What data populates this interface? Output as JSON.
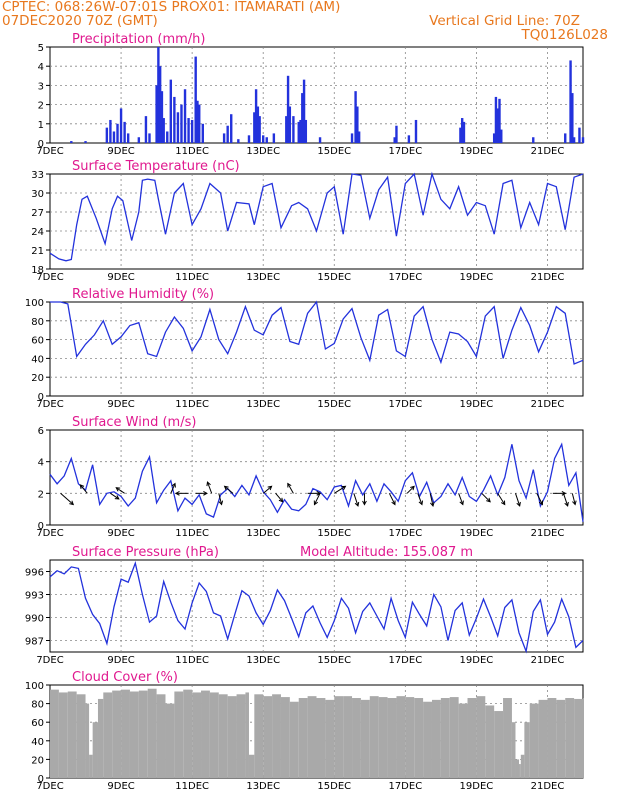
{
  "header": {
    "line1_left": "CPTEC:   068:26W-07:01S   PROX01: ITAMARATI (AM)",
    "line2_left": "07DEC2020 70Z (GMT)",
    "line2_right": "Vertical Grid Line: 70Z",
    "line3_right": "TQ0126L028"
  },
  "colors": {
    "header": "#e8781e",
    "title": "#e0198f",
    "series": "#2332dc",
    "cloud": "#a9a9a9"
  },
  "chart_data": [
    {
      "type": "bar",
      "title": "Precipitation (mm/h)",
      "ylim": [
        0,
        5
      ],
      "yticks": [
        "0",
        "1",
        "2",
        "3",
        "4",
        "5"
      ],
      "xticks": [
        "7DEC",
        "9DEC",
        "11DEC",
        "13DEC",
        "15DEC",
        "17DEC",
        "19DEC",
        "21DEC"
      ],
      "x_days": [
        0,
        15
      ],
      "bars": [
        {
          "x": 0.6,
          "y": 0.1
        },
        {
          "x": 1.0,
          "y": 0.1
        },
        {
          "x": 1.6,
          "y": 0.8
        },
        {
          "x": 1.7,
          "y": 1.2
        },
        {
          "x": 1.8,
          "y": 0.6
        },
        {
          "x": 1.9,
          "y": 1.0
        },
        {
          "x": 2.0,
          "y": 1.8
        },
        {
          "x": 2.1,
          "y": 1.1
        },
        {
          "x": 2.2,
          "y": 0.5
        },
        {
          "x": 2.5,
          "y": 0.3
        },
        {
          "x": 2.7,
          "y": 1.4
        },
        {
          "x": 2.8,
          "y": 0.5
        },
        {
          "x": 3.0,
          "y": 3.0
        },
        {
          "x": 3.05,
          "y": 5.0
        },
        {
          "x": 3.1,
          "y": 4.0
        },
        {
          "x": 3.15,
          "y": 2.7
        },
        {
          "x": 3.2,
          "y": 1.3
        },
        {
          "x": 3.3,
          "y": 0.6
        },
        {
          "x": 3.4,
          "y": 3.3
        },
        {
          "x": 3.5,
          "y": 2.4
        },
        {
          "x": 3.6,
          "y": 1.6
        },
        {
          "x": 3.7,
          "y": 2.0
        },
        {
          "x": 3.8,
          "y": 2.8
        },
        {
          "x": 3.9,
          "y": 1.3
        },
        {
          "x": 4.0,
          "y": 1.2
        },
        {
          "x": 4.1,
          "y": 4.5
        },
        {
          "x": 4.15,
          "y": 2.2
        },
        {
          "x": 4.2,
          "y": 2.0
        },
        {
          "x": 4.3,
          "y": 1.0
        },
        {
          "x": 4.9,
          "y": 0.5
        },
        {
          "x": 5.0,
          "y": 0.9
        },
        {
          "x": 5.1,
          "y": 1.5
        },
        {
          "x": 5.3,
          "y": 0.2
        },
        {
          "x": 5.6,
          "y": 0.4
        },
        {
          "x": 5.75,
          "y": 1.6
        },
        {
          "x": 5.8,
          "y": 2.8
        },
        {
          "x": 5.85,
          "y": 1.9
        },
        {
          "x": 5.9,
          "y": 1.4
        },
        {
          "x": 6.0,
          "y": 0.4
        },
        {
          "x": 6.1,
          "y": 0.3
        },
        {
          "x": 6.3,
          "y": 0.5
        },
        {
          "x": 6.65,
          "y": 1.4
        },
        {
          "x": 6.7,
          "y": 3.5
        },
        {
          "x": 6.75,
          "y": 1.9
        },
        {
          "x": 6.85,
          "y": 1.4
        },
        {
          "x": 7.0,
          "y": 1.1
        },
        {
          "x": 7.05,
          "y": 1.2
        },
        {
          "x": 7.1,
          "y": 2.6
        },
        {
          "x": 7.15,
          "y": 3.3
        },
        {
          "x": 7.2,
          "y": 1.2
        },
        {
          "x": 7.6,
          "y": 0.3
        },
        {
          "x": 8.5,
          "y": 0.5
        },
        {
          "x": 8.6,
          "y": 2.7
        },
        {
          "x": 8.65,
          "y": 1.9
        },
        {
          "x": 8.7,
          "y": 0.6
        },
        {
          "x": 9.7,
          "y": 0.3
        },
        {
          "x": 9.75,
          "y": 0.9
        },
        {
          "x": 10.1,
          "y": 0.4
        },
        {
          "x": 10.3,
          "y": 1.2
        },
        {
          "x": 11.55,
          "y": 0.8
        },
        {
          "x": 11.6,
          "y": 1.3
        },
        {
          "x": 11.65,
          "y": 1.1
        },
        {
          "x": 12.5,
          "y": 0.5
        },
        {
          "x": 12.55,
          "y": 2.4
        },
        {
          "x": 12.6,
          "y": 1.8
        },
        {
          "x": 12.65,
          "y": 2.3
        },
        {
          "x": 12.7,
          "y": 0.7
        },
        {
          "x": 13.6,
          "y": 0.3
        },
        {
          "x": 14.5,
          "y": 0.5
        },
        {
          "x": 14.65,
          "y": 4.3
        },
        {
          "x": 14.7,
          "y": 2.6
        },
        {
          "x": 14.75,
          "y": 0.3
        },
        {
          "x": 14.9,
          "y": 0.8
        },
        {
          "x": 15.0,
          "y": 0.3
        }
      ]
    },
    {
      "type": "line",
      "title": "Surface Temperature (nC)",
      "ylim": [
        18,
        33
      ],
      "yticks": [
        "18",
        "21",
        "24",
        "27",
        "30",
        "33"
      ],
      "xticks": [
        "7DEC",
        "9DEC",
        "11DEC",
        "13DEC",
        "15DEC",
        "17DEC",
        "19DEC",
        "21DEC"
      ],
      "x_days": [
        0,
        15
      ],
      "x": [
        0,
        0.25,
        0.45,
        0.6,
        0.75,
        0.9,
        1.05,
        1.3,
        1.55,
        1.75,
        1.9,
        2.05,
        2.3,
        2.5,
        2.6,
        2.75,
        2.95,
        3.05,
        3.25,
        3.5,
        3.75,
        4.0,
        4.25,
        4.5,
        4.8,
        5.0,
        5.25,
        5.6,
        5.75,
        6.0,
        6.25,
        6.5,
        6.8,
        7.0,
        7.25,
        7.5,
        7.8,
        8.0,
        8.25,
        8.5,
        8.75,
        9.0,
        9.25,
        9.5,
        9.75,
        10.0,
        10.25,
        10.5,
        10.75,
        11.0,
        11.25,
        11.5,
        11.75,
        12.0,
        12.25,
        12.5,
        12.75,
        13.0,
        13.25,
        13.5,
        13.75,
        14.0,
        14.25,
        14.5,
        14.75,
        15.0
      ],
      "y": [
        20.5,
        19.6,
        19.3,
        19.5,
        25.0,
        29.0,
        29.5,
        26.0,
        22.0,
        27.5,
        29.5,
        28.8,
        22.5,
        27.0,
        32.0,
        32.2,
        32.0,
        29.0,
        23.5,
        30.0,
        31.5,
        25.0,
        27.5,
        31.5,
        30.0,
        24.0,
        28.5,
        28.3,
        25.0,
        31.0,
        31.5,
        24.5,
        28.0,
        28.5,
        27.5,
        24.0,
        30.0,
        31.0,
        23.5,
        33.0,
        32.8,
        26.0,
        30.5,
        32.5,
        23.2,
        31.5,
        33.0,
        26.5,
        33.0,
        29.0,
        27.5,
        31.0,
        26.5,
        28.5,
        28.0,
        23.5,
        31.5,
        32.0,
        24.5,
        28.5,
        25.0,
        31.5,
        31.0,
        24.2,
        32.5,
        33.0
      ]
    },
    {
      "type": "line",
      "title": "Relative Humidity (%)",
      "ylim": [
        0,
        100
      ],
      "yticks": [
        "0",
        "20",
        "40",
        "60",
        "80",
        "100"
      ],
      "xticks": [
        "7DEC",
        "9DEC",
        "11DEC",
        "13DEC",
        "15DEC",
        "17DEC",
        "19DEC",
        "21DEC"
      ],
      "x_days": [
        0,
        15
      ],
      "x": [
        0,
        0.3,
        0.5,
        0.75,
        1.0,
        1.25,
        1.5,
        1.75,
        2.0,
        2.25,
        2.5,
        2.75,
        3.0,
        3.25,
        3.5,
        3.75,
        4.0,
        4.25,
        4.5,
        4.75,
        5.0,
        5.25,
        5.5,
        5.75,
        6.0,
        6.25,
        6.5,
        6.75,
        7.0,
        7.25,
        7.5,
        7.75,
        8.0,
        8.25,
        8.5,
        8.75,
        9.0,
        9.25,
        9.5,
        9.75,
        10.0,
        10.25,
        10.5,
        10.75,
        11.0,
        11.25,
        11.5,
        11.75,
        12.0,
        12.25,
        12.5,
        12.75,
        13.0,
        13.25,
        13.5,
        13.75,
        14.0,
        14.25,
        14.5,
        14.75,
        15.0
      ],
      "y": [
        100,
        100,
        98,
        42,
        55,
        65,
        80,
        55,
        63,
        75,
        78,
        45,
        42,
        68,
        84,
        72,
        48,
        63,
        92,
        60,
        45,
        68,
        95,
        70,
        65,
        86,
        94,
        58,
        55,
        88,
        100,
        50,
        56,
        82,
        93,
        62,
        38,
        86,
        92,
        48,
        42,
        85,
        95,
        60,
        36,
        68,
        66,
        58,
        42,
        85,
        95,
        40,
        70,
        94,
        75,
        47,
        68,
        95,
        88,
        34,
        38
      ]
    },
    {
      "type": "line",
      "title": "Surface Wind (m/s)",
      "ylim": [
        0,
        6
      ],
      "yticks": [
        "0",
        "2",
        "4",
        "6"
      ],
      "xticks": [
        "7DEC",
        "9DEC",
        "11DEC",
        "13DEC",
        "15DEC",
        "17DEC",
        "19DEC",
        "21DEC"
      ],
      "x_days": [
        0,
        15
      ],
      "x": [
        0,
        0.2,
        0.4,
        0.6,
        0.8,
        1.0,
        1.2,
        1.4,
        1.6,
        1.8,
        2.0,
        2.2,
        2.4,
        2.6,
        2.8,
        3.0,
        3.2,
        3.4,
        3.6,
        3.8,
        4.0,
        4.2,
        4.4,
        4.6,
        4.8,
        5.0,
        5.2,
        5.4,
        5.6,
        5.8,
        6.0,
        6.2,
        6.4,
        6.6,
        6.8,
        7.0,
        7.2,
        7.4,
        7.6,
        7.8,
        8.0,
        8.2,
        8.4,
        8.6,
        8.8,
        9.0,
        9.2,
        9.4,
        9.6,
        9.8,
        10.0,
        10.2,
        10.4,
        10.6,
        10.8,
        11.0,
        11.2,
        11.4,
        11.6,
        11.8,
        12.0,
        12.2,
        12.4,
        12.6,
        12.8,
        13.0,
        13.2,
        13.4,
        13.6,
        13.8,
        14.0,
        14.2,
        14.4,
        14.6,
        14.8,
        15.0
      ],
      "y": [
        3.2,
        2.6,
        3.1,
        4.2,
        2.6,
        2.2,
        3.8,
        1.3,
        2.0,
        2.1,
        1.8,
        1.2,
        1.7,
        3.4,
        4.3,
        1.4,
        2.2,
        2.8,
        0.9,
        1.7,
        1.3,
        1.9,
        0.7,
        0.5,
        1.9,
        2.3,
        1.8,
        2.5,
        1.9,
        3.1,
        2.1,
        1.6,
        0.8,
        1.6,
        1.0,
        0.9,
        1.3,
        2.3,
        2.1,
        1.6,
        2.4,
        2.5,
        1.2,
        2.8,
        1.9,
        2.6,
        1.5,
        2.6,
        2.1,
        1.5,
        2.8,
        3.3,
        1.8,
        2.7,
        1.4,
        1.8,
        2.6,
        1.9,
        3.0,
        1.8,
        1.5,
        2.2,
        3.1,
        1.9,
        3.0,
        5.1,
        2.8,
        1.7,
        3.5,
        1.2,
        2.1,
        4.2,
        5.1,
        2.5,
        3.3,
        0.2
      ],
      "vectors": [
        {
          "x": 0.3,
          "u": 0.9,
          "v": -0.8
        },
        {
          "x": 1.05,
          "u": -0.5,
          "v": 0.6
        },
        {
          "x": 1.7,
          "u": 0.6,
          "v": -0.4
        },
        {
          "x": 2.1,
          "u": -0.6,
          "v": 0.4
        },
        {
          "x": 3.4,
          "u": 0.3,
          "v": 0.7
        },
        {
          "x": 3.9,
          "u": -0.9,
          "v": 0.0
        },
        {
          "x": 4.1,
          "u": 0.8,
          "v": 0.0
        },
        {
          "x": 4.55,
          "u": -0.3,
          "v": 0.8
        },
        {
          "x": 4.75,
          "u": 0.2,
          "v": -0.8
        },
        {
          "x": 5.15,
          "u": -0.6,
          "v": 0.5
        },
        {
          "x": 6.0,
          "u": 0.6,
          "v": 0.5
        },
        {
          "x": 6.35,
          "u": 0.5,
          "v": -0.6
        },
        {
          "x": 6.85,
          "u": -0.4,
          "v": 0.7
        },
        {
          "x": 7.25,
          "u": 0.9,
          "v": 0.0
        },
        {
          "x": 7.6,
          "u": -0.4,
          "v": -0.8
        },
        {
          "x": 8.0,
          "u": 0.8,
          "v": 0.5
        },
        {
          "x": 8.55,
          "u": 0.3,
          "v": -0.9
        },
        {
          "x": 8.85,
          "u": 0.0,
          "v": -0.8
        },
        {
          "x": 9.55,
          "u": 0.4,
          "v": -0.8
        },
        {
          "x": 10.05,
          "u": 0.5,
          "v": 0.5
        },
        {
          "x": 10.35,
          "u": 0.3,
          "v": -0.8
        },
        {
          "x": 10.7,
          "u": 0.2,
          "v": -0.9
        },
        {
          "x": 11.5,
          "u": 0.3,
          "v": -0.8
        },
        {
          "x": 12.15,
          "u": 0.6,
          "v": -0.6
        },
        {
          "x": 12.6,
          "u": 0.5,
          "v": -0.8
        },
        {
          "x": 13.1,
          "u": 0.3,
          "v": -0.9
        },
        {
          "x": 13.7,
          "u": 0.4,
          "v": -0.8
        },
        {
          "x": 14.15,
          "u": 0.9,
          "v": 0.0
        },
        {
          "x": 14.45,
          "u": 0.3,
          "v": -0.9
        },
        {
          "x": 14.7,
          "u": 0.2,
          "v": -0.8
        }
      ]
    },
    {
      "type": "line",
      "title": "Surface Pressure (hPa)",
      "annotation": "Model Altitude: 155.087 m",
      "ylim": [
        985.5,
        997.5
      ],
      "yticks": [
        "987",
        "990",
        "993",
        "996"
      ],
      "ytick_values": [
        987,
        990,
        993,
        996
      ],
      "xticks": [
        "7DEC",
        "9DEC",
        "11DEC",
        "13DEC",
        "15DEC",
        "17DEC",
        "19DEC",
        "21DEC"
      ],
      "x_days": [
        0,
        15
      ],
      "x": [
        0,
        0.2,
        0.4,
        0.6,
        0.8,
        1.0,
        1.2,
        1.4,
        1.6,
        1.8,
        2.0,
        2.2,
        2.4,
        2.6,
        2.8,
        3.0,
        3.2,
        3.4,
        3.6,
        3.8,
        4.0,
        4.2,
        4.4,
        4.6,
        4.8,
        5.0,
        5.2,
        5.4,
        5.6,
        5.8,
        6.0,
        6.2,
        6.4,
        6.6,
        6.8,
        7.0,
        7.2,
        7.4,
        7.6,
        7.8,
        8.0,
        8.2,
        8.4,
        8.6,
        8.8,
        9.0,
        9.2,
        9.4,
        9.6,
        9.8,
        10.0,
        10.2,
        10.4,
        10.6,
        10.8,
        11.0,
        11.2,
        11.4,
        11.6,
        11.8,
        12.0,
        12.2,
        12.4,
        12.6,
        12.8,
        13.0,
        13.2,
        13.4,
        13.6,
        13.8,
        14.0,
        14.2,
        14.4,
        14.6,
        14.8,
        15.0
      ],
      "y": [
        995.3,
        996.1,
        995.7,
        996.6,
        996.4,
        992.5,
        990.4,
        989.2,
        986.6,
        991.4,
        995.0,
        994.6,
        997.1,
        993.0,
        989.4,
        990.2,
        994.7,
        992.0,
        989.6,
        988.5,
        991.9,
        994.5,
        993.4,
        990.6,
        990.2,
        987.2,
        990.4,
        993.5,
        992.8,
        990.6,
        989.1,
        990.9,
        993.6,
        992.2,
        989.9,
        987.5,
        990.6,
        991.5,
        989.3,
        987.4,
        989.6,
        992.5,
        991.2,
        988.0,
        990.8,
        991.9,
        990.2,
        988.5,
        992.5,
        989.6,
        987.4,
        992.0,
        990.4,
        988.9,
        993.0,
        991.4,
        987.0,
        990.9,
        991.9,
        987.7,
        989.9,
        992.4,
        990.1,
        987.6,
        991.3,
        992.3,
        988.0,
        985.6,
        990.8,
        992.3,
        987.8,
        989.4,
        992.4,
        990.1,
        986.1,
        987.0
      ]
    },
    {
      "type": "bar",
      "title": "Cloud Cover (%)",
      "ylim": [
        0,
        100
      ],
      "yticks": [
        "0",
        "20",
        "40",
        "60",
        "80",
        "100"
      ],
      "xticks": [
        "7DEC",
        "9DEC",
        "11DEC",
        "13DEC",
        "15DEC",
        "17DEC",
        "19DEC",
        "21DEC"
      ],
      "x_days": [
        0,
        15
      ],
      "x": [
        0,
        0.25,
        0.5,
        0.75,
        1.0,
        1.1,
        1.2,
        1.35,
        1.5,
        1.75,
        2.0,
        2.25,
        2.5,
        2.75,
        3.0,
        3.25,
        3.5,
        3.75,
        4.0,
        4.25,
        4.5,
        4.75,
        5.0,
        5.25,
        5.5,
        5.6,
        5.75,
        6.0,
        6.25,
        6.5,
        6.75,
        7.0,
        7.25,
        7.5,
        7.75,
        8.0,
        8.25,
        8.5,
        8.75,
        9.0,
        9.25,
        9.5,
        9.75,
        10.0,
        10.25,
        10.5,
        10.75,
        11.0,
        11.25,
        11.5,
        11.75,
        12.0,
        12.25,
        12.5,
        12.75,
        13.0,
        13.1,
        13.2,
        13.25,
        13.35,
        13.5,
        13.75,
        14.0,
        14.25,
        14.5,
        14.75,
        15.0
      ],
      "y": [
        95,
        92,
        93,
        90,
        80,
        25,
        60,
        85,
        92,
        94,
        95,
        93,
        94,
        96,
        90,
        80,
        93,
        95,
        92,
        94,
        92,
        90,
        88,
        90,
        92,
        25,
        90,
        88,
        90,
        87,
        82,
        86,
        88,
        86,
        84,
        88,
        88,
        86,
        84,
        88,
        87,
        86,
        88,
        87,
        86,
        82,
        84,
        86,
        87,
        80,
        86,
        88,
        78,
        72,
        86,
        60,
        20,
        15,
        25,
        60,
        80,
        84,
        86,
        84,
        86,
        85,
        86
      ]
    }
  ]
}
